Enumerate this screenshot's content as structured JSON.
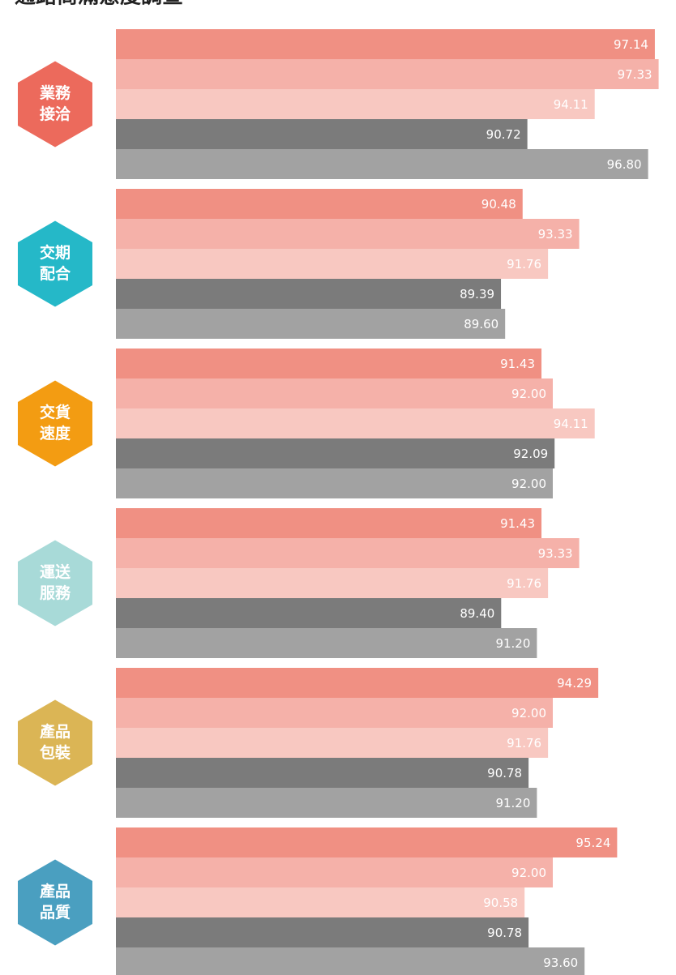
{
  "chart_data": {
    "type": "bar",
    "orientation": "horizontal",
    "title": "通路商滿意度調查",
    "categories": [
      [
        "業務",
        "接洽"
      ],
      [
        "交期",
        "配合"
      ],
      [
        "交貨",
        "速度"
      ],
      [
        "運送",
        "服務"
      ],
      [
        "產品",
        "包裝"
      ],
      [
        "產品",
        "品質"
      ]
    ],
    "category_colors": [
      "#ec6a5c",
      "#25b8c8",
      "#f39c12",
      "#a8dad8",
      "#dbb555",
      "#4a9fc0"
    ],
    "series": [
      {
        "color": "#f09083",
        "values": [
          97.14,
          90.48,
          91.43,
          91.43,
          94.29,
          95.24
        ],
        "value_labels": [
          "97.14",
          "90.48",
          "91.43",
          "91.43",
          "94.29",
          "95.24"
        ]
      },
      {
        "color": "#f5b1a9",
        "values": [
          97.33,
          93.33,
          92.0,
          93.33,
          92.0,
          92.0
        ],
        "value_labels": [
          "97.33",
          "93.33",
          "92.00",
          "93.33",
          "92.00",
          "92.00"
        ]
      },
      {
        "color": "#f8c8c1",
        "values": [
          94.11,
          91.76,
          94.11,
          91.76,
          91.76,
          90.58
        ],
        "value_labels": [
          "94.11",
          "91.76",
          "94.11",
          "91.76",
          "91.76",
          "90.58"
        ]
      },
      {
        "color": "#7b7b7b",
        "values": [
          90.72,
          89.39,
          92.09,
          89.4,
          90.78,
          90.78
        ],
        "value_labels": [
          "90.72",
          "89.39",
          "92.09",
          "89.40",
          "90.78",
          "90.78"
        ]
      },
      {
        "color": "#a2a2a2",
        "values": [
          96.8,
          89.6,
          92.0,
          91.2,
          91.2,
          93.6
        ],
        "value_labels": [
          "96.80",
          "89.60",
          "92.00",
          "91.20",
          "91.20",
          "93.60"
        ]
      }
    ],
    "xlim": [
      70,
      98
    ]
  }
}
